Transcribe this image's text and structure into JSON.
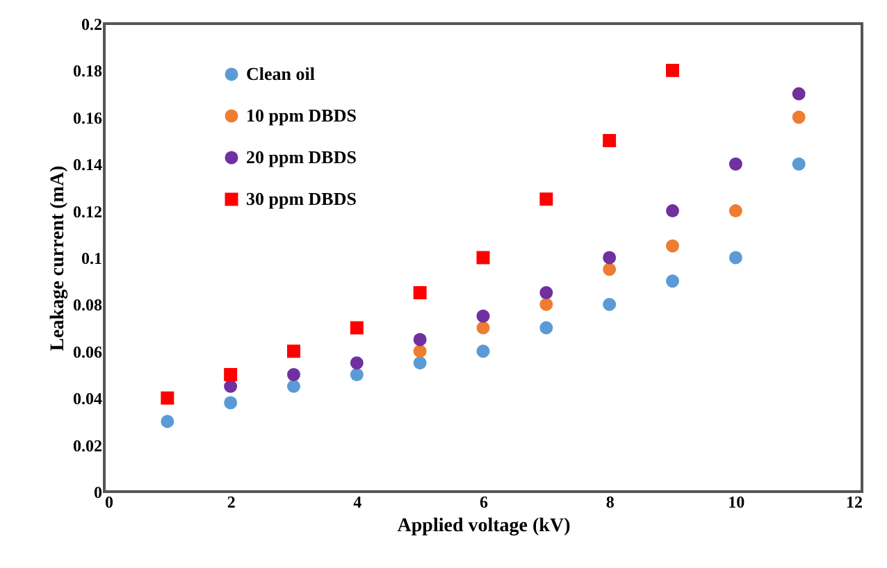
{
  "chart_data": {
    "type": "scatter",
    "xlabel": "Applied voltage (kV)",
    "ylabel": "Leakage current  (mA)",
    "x": [
      1,
      2,
      3,
      4,
      5,
      6,
      7,
      8,
      9,
      10,
      11
    ],
    "series": [
      {
        "name": "Clean oil",
        "color": "#5b9bd5",
        "marker": "circle",
        "values": [
          0.03,
          0.038,
          0.045,
          0.05,
          0.055,
          0.06,
          0.07,
          0.08,
          0.09,
          0.1,
          0.14
        ]
      },
      {
        "name": "10 ppm DBDS",
        "color": "#ed7d31",
        "marker": "circle",
        "values": [
          null,
          null,
          null,
          null,
          0.06,
          0.07,
          0.08,
          0.095,
          0.105,
          0.12,
          0.16
        ]
      },
      {
        "name": "20 ppm DBDS",
        "color": "#7030a0",
        "marker": "circle",
        "values": [
          null,
          0.045,
          0.05,
          0.055,
          0.065,
          0.075,
          0.085,
          0.1,
          0.12,
          0.14,
          0.17
        ]
      },
      {
        "name": "30 ppm DBDS",
        "color": "#ff0000",
        "marker": "square",
        "values": [
          0.04,
          0.05,
          0.06,
          0.07,
          0.085,
          0.1,
          0.125,
          0.15,
          0.18,
          null,
          null
        ]
      }
    ],
    "xlim": [
      0,
      12
    ],
    "xticks": [
      0,
      2,
      4,
      6,
      8,
      10,
      12
    ],
    "ylim": [
      0,
      0.2
    ],
    "yticks": [
      0,
      0.02,
      0.04,
      0.06,
      0.08,
      0.1,
      0.12,
      0.14,
      0.16,
      0.18,
      0.2
    ],
    "grid": false,
    "legend": "top left"
  }
}
